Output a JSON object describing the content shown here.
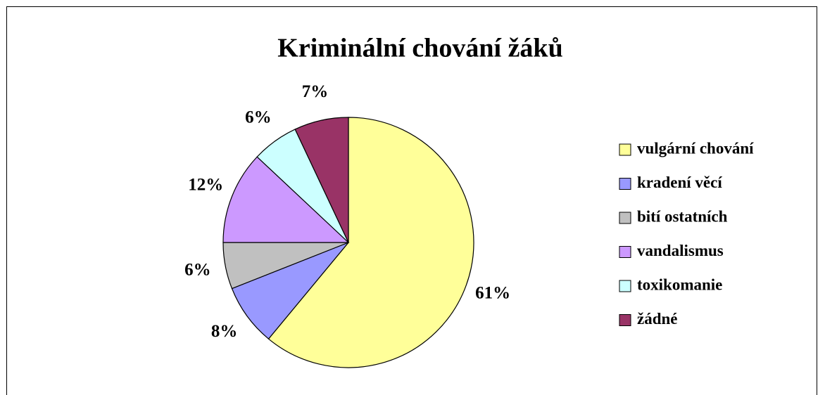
{
  "chart_data": {
    "type": "pie",
    "title": "Kriminální chování žáků",
    "categories": [
      "vulgární chování",
      "kradení věcí",
      "bití ostatních",
      "vandalismus",
      "toxikomanie",
      "žádné"
    ],
    "values": [
      61,
      8,
      6,
      12,
      6,
      7
    ],
    "value_labels": [
      "61%",
      "8%",
      "6%",
      "12%",
      "6%",
      "7%"
    ],
    "colors": [
      "#FFFF99",
      "#9999FF",
      "#C0C0C0",
      "#CC99FF",
      "#CCFFFF",
      "#993366"
    ],
    "legend": "right"
  }
}
